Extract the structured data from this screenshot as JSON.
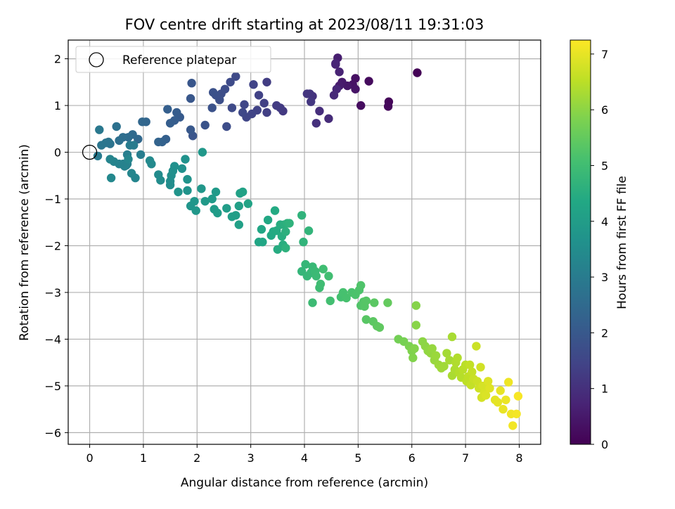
{
  "chart_data": {
    "type": "scatter",
    "title": "FOV centre drift starting at 2023/08/11 19:31:03",
    "xlabel": "Angular distance from reference (arcmin)",
    "ylabel": "Rotation from reference (arcmin)",
    "xlim": [
      -0.4,
      8.4
    ],
    "ylim": [
      -6.25,
      2.4
    ],
    "xticks": [
      0,
      1,
      2,
      3,
      4,
      5,
      6,
      7,
      8
    ],
    "yticks": [
      -6,
      -5,
      -4,
      -3,
      -2,
      -1,
      0,
      1,
      2
    ],
    "grid": true,
    "legend": {
      "label": "Reference platepar",
      "placement": "top-left"
    },
    "reference_point": {
      "x": 0,
      "y": 0
    },
    "colorbar": {
      "label": "Hours from first FF file",
      "range": [
        0,
        7.25
      ],
      "ticks": [
        0,
        1,
        2,
        3,
        4,
        5,
        6,
        7
      ],
      "colormap": "viridis"
    },
    "series": [
      {
        "points": [
          [
            6.1,
            1.7,
            0.05
          ],
          [
            5.57,
            1.08,
            0.1
          ],
          [
            5.56,
            0.98,
            0.15
          ],
          [
            5.2,
            1.52,
            0.2
          ],
          [
            5.05,
            1.0,
            0.25
          ],
          [
            4.95,
            1.58,
            0.3
          ],
          [
            4.9,
            1.45,
            0.35
          ],
          [
            4.95,
            1.35,
            0.4
          ],
          [
            4.8,
            1.42,
            0.45
          ],
          [
            4.7,
            1.5,
            0.5
          ],
          [
            4.65,
            1.42,
            0.55
          ],
          [
            4.62,
            2.02,
            0.6
          ],
          [
            4.58,
            1.88,
            0.65
          ],
          [
            4.65,
            1.72,
            0.7
          ],
          [
            4.58,
            1.9,
            0.75
          ],
          [
            4.6,
            1.35,
            0.8
          ],
          [
            4.55,
            1.22,
            0.85
          ],
          [
            4.45,
            0.72,
            0.9
          ],
          [
            4.28,
            0.88,
            0.95
          ],
          [
            4.22,
            0.62,
            1.0
          ],
          [
            4.15,
            1.2,
            1.05
          ],
          [
            4.1,
            1.25,
            1.1
          ],
          [
            4.05,
            1.25,
            1.12
          ],
          [
            4.12,
            1.08,
            1.15
          ],
          [
            3.6,
            0.88,
            1.2
          ],
          [
            3.55,
            0.95,
            1.25
          ],
          [
            3.48,
            1.0,
            1.28
          ],
          [
            3.3,
            1.5,
            1.3
          ],
          [
            3.3,
            0.85,
            1.35
          ],
          [
            3.25,
            1.05,
            1.38
          ],
          [
            3.15,
            1.22,
            1.4
          ],
          [
            3.12,
            0.9,
            1.42
          ],
          [
            3.05,
            1.45,
            1.45
          ],
          [
            3.02,
            0.82,
            1.48
          ],
          [
            2.92,
            0.75,
            1.5
          ],
          [
            2.88,
            1.02,
            1.52
          ],
          [
            2.85,
            0.85,
            1.55
          ],
          [
            2.72,
            1.62,
            1.6
          ],
          [
            2.65,
            0.95,
            1.62
          ],
          [
            2.62,
            1.5,
            1.65
          ],
          [
            2.55,
            0.55,
            1.68
          ],
          [
            2.52,
            1.35,
            1.7
          ],
          [
            2.45,
            1.25,
            1.72
          ],
          [
            2.42,
            1.12,
            1.75
          ],
          [
            2.35,
            1.22,
            1.78
          ],
          [
            2.3,
            1.28,
            1.8
          ],
          [
            2.28,
            0.95,
            1.82
          ],
          [
            2.15,
            0.58,
            1.85
          ],
          [
            1.92,
            0.35,
            1.9
          ],
          [
            1.9,
            1.48,
            1.92
          ],
          [
            1.88,
            1.15,
            1.95
          ],
          [
            1.88,
            0.48,
            1.98
          ],
          [
            1.68,
            0.75,
            2.05
          ],
          [
            1.62,
            0.85,
            2.1
          ],
          [
            1.58,
            0.68,
            2.12
          ],
          [
            1.5,
            0.62,
            2.15
          ],
          [
            1.45,
            0.92,
            2.18
          ],
          [
            1.42,
            0.28,
            2.2
          ],
          [
            1.35,
            0.22,
            2.25
          ],
          [
            1.28,
            0.22,
            2.28
          ],
          [
            1.05,
            0.65,
            2.35
          ],
          [
            0.98,
            0.65,
            2.4
          ],
          [
            0.9,
            0.28,
            2.45
          ],
          [
            0.8,
            0.38,
            2.5
          ],
          [
            0.72,
            0.32,
            2.55
          ],
          [
            0.62,
            0.32,
            2.6
          ],
          [
            0.55,
            0.25,
            2.65
          ],
          [
            0.5,
            0.55,
            2.7
          ],
          [
            0.38,
            0.18,
            2.75
          ],
          [
            0.35,
            0.22,
            2.78
          ],
          [
            0.3,
            0.2,
            2.8
          ],
          [
            0.22,
            0.15,
            2.85
          ],
          [
            0.18,
            0.48,
            2.9
          ],
          [
            0.15,
            -0.08,
            2.95
          ],
          [
            0.75,
            0.15,
            2.98
          ],
          [
            0.82,
            0.15,
            3.0
          ],
          [
            0.95,
            -0.05,
            3.05
          ],
          [
            0.7,
            -0.05,
            3.08
          ],
          [
            0.7,
            -0.25,
            3.1
          ],
          [
            0.68,
            -0.28,
            3.12
          ],
          [
            0.62,
            -0.25,
            3.15
          ],
          [
            0.65,
            -0.3,
            3.18
          ],
          [
            0.55,
            -0.25,
            3.2
          ],
          [
            0.45,
            -0.2,
            3.22
          ],
          [
            0.38,
            -0.15,
            3.25
          ],
          [
            0.85,
            -0.55,
            3.28
          ],
          [
            0.78,
            -0.45,
            3.3
          ],
          [
            0.72,
            -0.15,
            3.32
          ],
          [
            0.4,
            -0.55,
            3.35
          ],
          [
            1.15,
            -0.25,
            3.4
          ],
          [
            1.12,
            -0.18,
            3.42
          ],
          [
            1.28,
            -0.48,
            3.45
          ],
          [
            1.32,
            -0.6,
            3.48
          ],
          [
            1.5,
            -0.7,
            3.5
          ],
          [
            1.5,
            -0.62,
            3.52
          ],
          [
            1.52,
            -0.5,
            3.55
          ],
          [
            1.55,
            -0.4,
            3.58
          ],
          [
            1.58,
            -0.3,
            3.6
          ],
          [
            1.72,
            -0.35,
            3.62
          ],
          [
            1.78,
            -0.15,
            3.65
          ],
          [
            1.82,
            -0.58,
            3.68
          ],
          [
            1.82,
            -0.82,
            3.7
          ],
          [
            1.65,
            -0.85,
            3.72
          ],
          [
            1.88,
            -1.15,
            3.75
          ],
          [
            1.95,
            -1.05,
            3.78
          ],
          [
            1.98,
            -1.25,
            3.8
          ],
          [
            2.08,
            -0.78,
            3.82
          ],
          [
            2.1,
            0.0,
            3.85
          ],
          [
            2.15,
            -1.05,
            3.88
          ],
          [
            2.28,
            -1.0,
            3.9
          ],
          [
            2.35,
            -0.85,
            3.92
          ],
          [
            2.32,
            -1.22,
            3.95
          ],
          [
            2.38,
            -1.3,
            3.98
          ],
          [
            2.55,
            -1.2,
            4.0
          ],
          [
            2.65,
            -1.38,
            4.02
          ],
          [
            2.72,
            -1.35,
            4.05
          ],
          [
            2.78,
            -1.15,
            4.08
          ],
          [
            2.78,
            -1.55,
            4.1
          ],
          [
            2.8,
            -0.88,
            4.12
          ],
          [
            2.85,
            -0.85,
            4.15
          ],
          [
            2.95,
            -1.1,
            4.18
          ],
          [
            3.15,
            -1.92,
            4.25
          ],
          [
            3.22,
            -1.92,
            4.28
          ],
          [
            3.2,
            -1.65,
            4.3
          ],
          [
            3.32,
            -1.45,
            4.32
          ],
          [
            3.38,
            -1.78,
            4.35
          ],
          [
            3.42,
            -1.7,
            4.38
          ],
          [
            3.45,
            -1.25,
            4.4
          ],
          [
            3.48,
            -1.68,
            4.42
          ],
          [
            3.5,
            -2.08,
            4.45
          ],
          [
            3.55,
            -1.55,
            4.48
          ],
          [
            3.58,
            -1.8,
            4.5
          ],
          [
            3.6,
            -1.98,
            4.52
          ],
          [
            3.62,
            -1.55,
            4.55
          ],
          [
            3.65,
            -1.7,
            4.58
          ],
          [
            3.68,
            -1.52,
            4.6
          ],
          [
            3.65,
            -2.05,
            4.62
          ],
          [
            3.72,
            -1.52,
            4.65
          ],
          [
            3.95,
            -1.35,
            4.68
          ],
          [
            3.98,
            -1.92,
            4.7
          ],
          [
            4.08,
            -1.68,
            4.72
          ],
          [
            3.95,
            -2.55,
            4.75
          ],
          [
            4.02,
            -2.4,
            4.78
          ],
          [
            4.05,
            -2.65,
            4.8
          ],
          [
            4.12,
            -2.58,
            4.82
          ],
          [
            4.15,
            -2.45,
            4.85
          ],
          [
            4.2,
            -2.55,
            4.88
          ],
          [
            4.22,
            -2.65,
            4.9
          ],
          [
            4.15,
            -3.22,
            4.92
          ],
          [
            4.28,
            -2.9,
            4.95
          ],
          [
            4.3,
            -2.82,
            4.98
          ],
          [
            4.35,
            -2.5,
            5.0
          ],
          [
            4.45,
            -2.65,
            5.02
          ],
          [
            4.48,
            -3.18,
            5.05
          ],
          [
            4.68,
            -3.1,
            5.08
          ],
          [
            4.72,
            -3.0,
            5.1
          ],
          [
            4.78,
            -3.12,
            5.12
          ],
          [
            4.88,
            -3.0,
            5.15
          ],
          [
            4.95,
            -3.05,
            5.18
          ],
          [
            5.02,
            -2.95,
            5.2
          ],
          [
            5.05,
            -2.85,
            5.22
          ],
          [
            5.05,
            -3.28,
            5.25
          ],
          [
            5.1,
            -3.2,
            5.28
          ],
          [
            5.12,
            -3.3,
            5.3
          ],
          [
            5.15,
            -3.18,
            5.32
          ],
          [
            5.15,
            -3.58,
            5.35
          ],
          [
            5.3,
            -3.22,
            5.38
          ],
          [
            5.28,
            -3.62,
            5.4
          ],
          [
            5.35,
            -3.72,
            5.42
          ],
          [
            5.4,
            -3.75,
            5.45
          ],
          [
            5.55,
            -3.22,
            5.5
          ],
          [
            5.75,
            -4.0,
            5.7
          ],
          [
            5.85,
            -4.05,
            5.75
          ],
          [
            5.95,
            -4.15,
            5.8
          ],
          [
            6.0,
            -4.25,
            5.85
          ],
          [
            6.02,
            -4.4,
            5.88
          ],
          [
            6.05,
            -4.2,
            5.9
          ],
          [
            6.08,
            -3.28,
            5.92
          ],
          [
            6.08,
            -3.7,
            5.95
          ],
          [
            6.2,
            -4.05,
            6.0
          ],
          [
            6.25,
            -4.15,
            6.02
          ],
          [
            6.3,
            -4.25,
            6.05
          ],
          [
            6.35,
            -4.3,
            6.08
          ],
          [
            6.38,
            -4.2,
            6.1
          ],
          [
            6.42,
            -4.45,
            6.12
          ],
          [
            6.45,
            -4.35,
            6.15
          ],
          [
            6.5,
            -4.55,
            6.18
          ],
          [
            6.55,
            -4.62,
            6.2
          ],
          [
            6.6,
            -4.58,
            6.22
          ],
          [
            6.65,
            -4.3,
            6.25
          ],
          [
            6.7,
            -4.45,
            6.28
          ],
          [
            6.75,
            -3.95,
            6.3
          ],
          [
            6.75,
            -4.78,
            6.32
          ],
          [
            6.8,
            -4.65,
            6.35
          ],
          [
            6.82,
            -4.5,
            6.38
          ],
          [
            6.85,
            -4.4,
            6.4
          ],
          [
            6.88,
            -4.72,
            6.42
          ],
          [
            6.92,
            -4.82,
            6.45
          ],
          [
            6.95,
            -4.65,
            6.48
          ],
          [
            7.0,
            -4.55,
            6.5
          ],
          [
            7.02,
            -4.9,
            6.52
          ],
          [
            7.05,
            -4.8,
            6.55
          ],
          [
            7.08,
            -4.55,
            6.58
          ],
          [
            7.1,
            -4.98,
            6.6
          ],
          [
            7.12,
            -4.7,
            6.62
          ],
          [
            7.15,
            -4.85,
            6.65
          ],
          [
            7.2,
            -4.15,
            6.68
          ],
          [
            7.22,
            -4.9,
            6.7
          ],
          [
            7.25,
            -5.05,
            6.72
          ],
          [
            7.28,
            -4.6,
            6.75
          ],
          [
            7.3,
            -5.25,
            6.78
          ],
          [
            7.32,
            -5.0,
            6.8
          ],
          [
            7.35,
            -5.15,
            6.82
          ],
          [
            7.38,
            -5.2,
            6.85
          ],
          [
            7.42,
            -4.9,
            6.88
          ],
          [
            7.45,
            -5.05,
            6.9
          ],
          [
            7.55,
            -5.3,
            6.95
          ],
          [
            7.6,
            -5.35,
            6.98
          ],
          [
            7.65,
            -5.1,
            7.0
          ],
          [
            7.7,
            -5.5,
            7.02
          ],
          [
            7.75,
            -5.3,
            7.05
          ],
          [
            7.8,
            -4.92,
            7.08
          ],
          [
            7.85,
            -5.6,
            7.1
          ],
          [
            7.88,
            -5.85,
            7.12
          ],
          [
            7.95,
            -5.6,
            7.15
          ],
          [
            7.98,
            -5.22,
            7.18
          ]
        ]
      }
    ]
  }
}
